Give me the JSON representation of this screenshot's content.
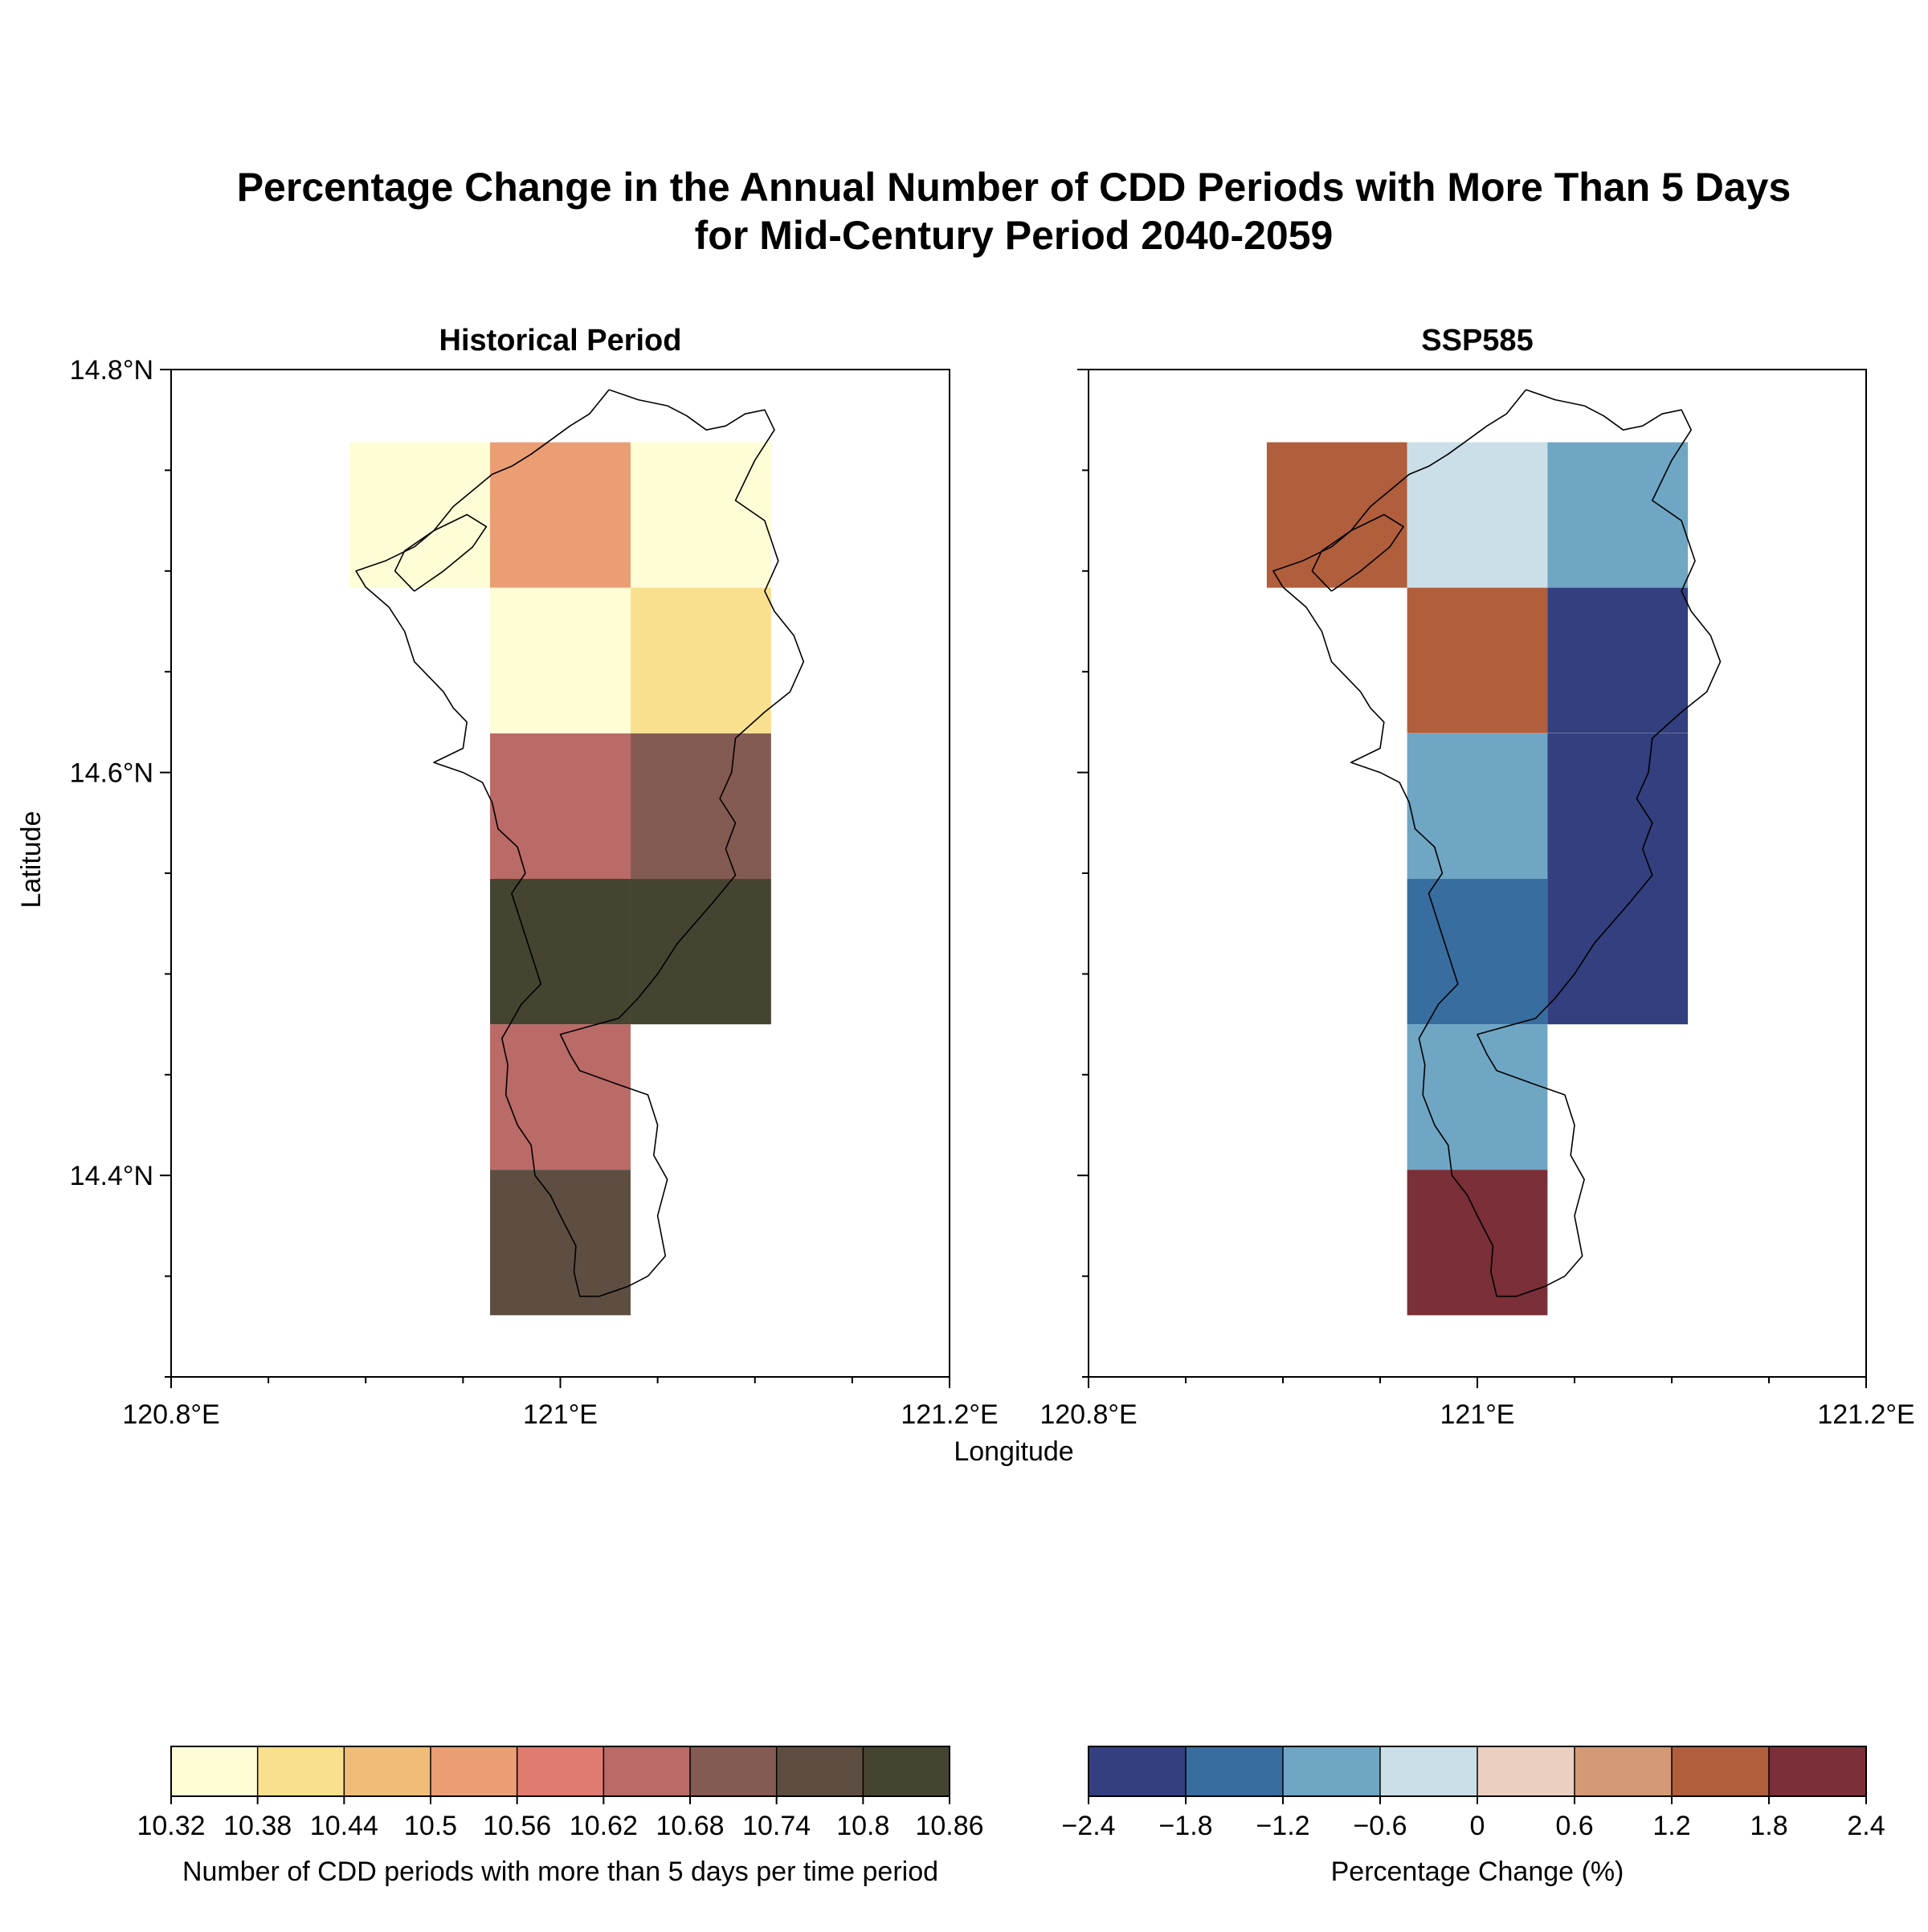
{
  "title_line1": "Percentage Change in the Annual Number of CDD Periods with More Than 5 Days",
  "title_line2": "for Mid-Century Period 2040-2059",
  "xlabel": "Longitude",
  "ylabel": "Latitude",
  "chart_data": [
    {
      "type": "heatmap",
      "title": "Historical Period",
      "xlim": [
        120.8,
        121.2
      ],
      "ylim": [
        14.3,
        14.8
      ],
      "x_ticks": [
        "120.8°E",
        "121°E",
        "121.2°E"
      ],
      "y_ticks": [
        "14.8°N",
        "14.6°N",
        "14.4°N"
      ],
      "cell_size_deg": [
        0.0722,
        0.0722
      ],
      "cells": [
        {
          "lon": 120.9278,
          "lat": 14.7278,
          "value": 10.35
        },
        {
          "lon": 121.0,
          "lat": 14.7278,
          "value": 10.53
        },
        {
          "lon": 121.0722,
          "lat": 14.7278,
          "value": 10.35
        },
        {
          "lon": 121.0,
          "lat": 14.6556,
          "value": 10.35
        },
        {
          "lon": 121.0722,
          "lat": 14.6556,
          "value": 10.41
        },
        {
          "lon": 121.0,
          "lat": 14.5833,
          "value": 10.65
        },
        {
          "lon": 121.0722,
          "lat": 14.5833,
          "value": 10.71
        },
        {
          "lon": 121.0,
          "lat": 14.5111,
          "value": 10.83
        },
        {
          "lon": 121.0722,
          "lat": 14.5111,
          "value": 10.83
        },
        {
          "lon": 121.0,
          "lat": 14.4389,
          "value": 10.65
        },
        {
          "lon": 121.0,
          "lat": 14.3667,
          "value": 10.77
        }
      ],
      "colorbar": {
        "label": "Number of CDD periods with more than 5 days per time period",
        "boundaries": [
          10.32,
          10.38,
          10.44,
          10.5,
          10.56,
          10.62,
          10.68,
          10.74,
          10.8,
          10.86
        ],
        "tick_labels": [
          "10.32",
          "10.38",
          "10.44",
          "10.5",
          "10.56",
          "10.62",
          "10.68",
          "10.74",
          "10.8",
          "10.86"
        ],
        "colors": [
          "#fffdd6",
          "#f8e08f",
          "#f0bd78",
          "#eb9d74",
          "#e07b6f",
          "#ba6a67",
          "#845b52",
          "#5e4e41",
          "#454431"
        ]
      }
    },
    {
      "type": "heatmap",
      "title": "SSP585",
      "xlim": [
        120.8,
        121.2
      ],
      "ylim": [
        14.3,
        14.8
      ],
      "x_ticks": [
        "120.8°E",
        "121°E",
        "121.2°E"
      ],
      "y_ticks": [
        "14.8°N",
        "14.6°N",
        "14.4°N"
      ],
      "cell_size_deg": [
        0.0722,
        0.0722
      ],
      "cells": [
        {
          "lon": 120.9278,
          "lat": 14.7278,
          "value": 1.5
        },
        {
          "lon": 121.0,
          "lat": 14.7278,
          "value": -0.3
        },
        {
          "lon": 121.0722,
          "lat": 14.7278,
          "value": -0.9
        },
        {
          "lon": 121.0,
          "lat": 14.6556,
          "value": 1.5
        },
        {
          "lon": 121.0722,
          "lat": 14.6556,
          "value": -2.1
        },
        {
          "lon": 121.0,
          "lat": 14.5833,
          "value": -0.9
        },
        {
          "lon": 121.0722,
          "lat": 14.5833,
          "value": -2.1
        },
        {
          "lon": 121.0,
          "lat": 14.5111,
          "value": -1.5
        },
        {
          "lon": 121.0722,
          "lat": 14.5111,
          "value": -2.1
        },
        {
          "lon": 121.0,
          "lat": 14.4389,
          "value": -0.9
        },
        {
          "lon": 121.0,
          "lat": 14.3667,
          "value": 2.1
        }
      ],
      "colorbar": {
        "label": "Percentage Change (%)",
        "boundaries": [
          -2.4,
          -1.8,
          -1.2,
          -0.6,
          0,
          0.6,
          1.2,
          1.8,
          2.4
        ],
        "tick_labels": [
          "−2.4",
          "−1.8",
          "−1.2",
          "−0.6",
          "0",
          "0.6",
          "1.2",
          "1.8",
          "2.4"
        ],
        "colors": [
          "#333f7e",
          "#386d9f",
          "#6fa6c4",
          "#cadfe7",
          "#ebd0c2",
          "#d49a76",
          "#b05e3c",
          "#7a2f39"
        ]
      }
    }
  ]
}
